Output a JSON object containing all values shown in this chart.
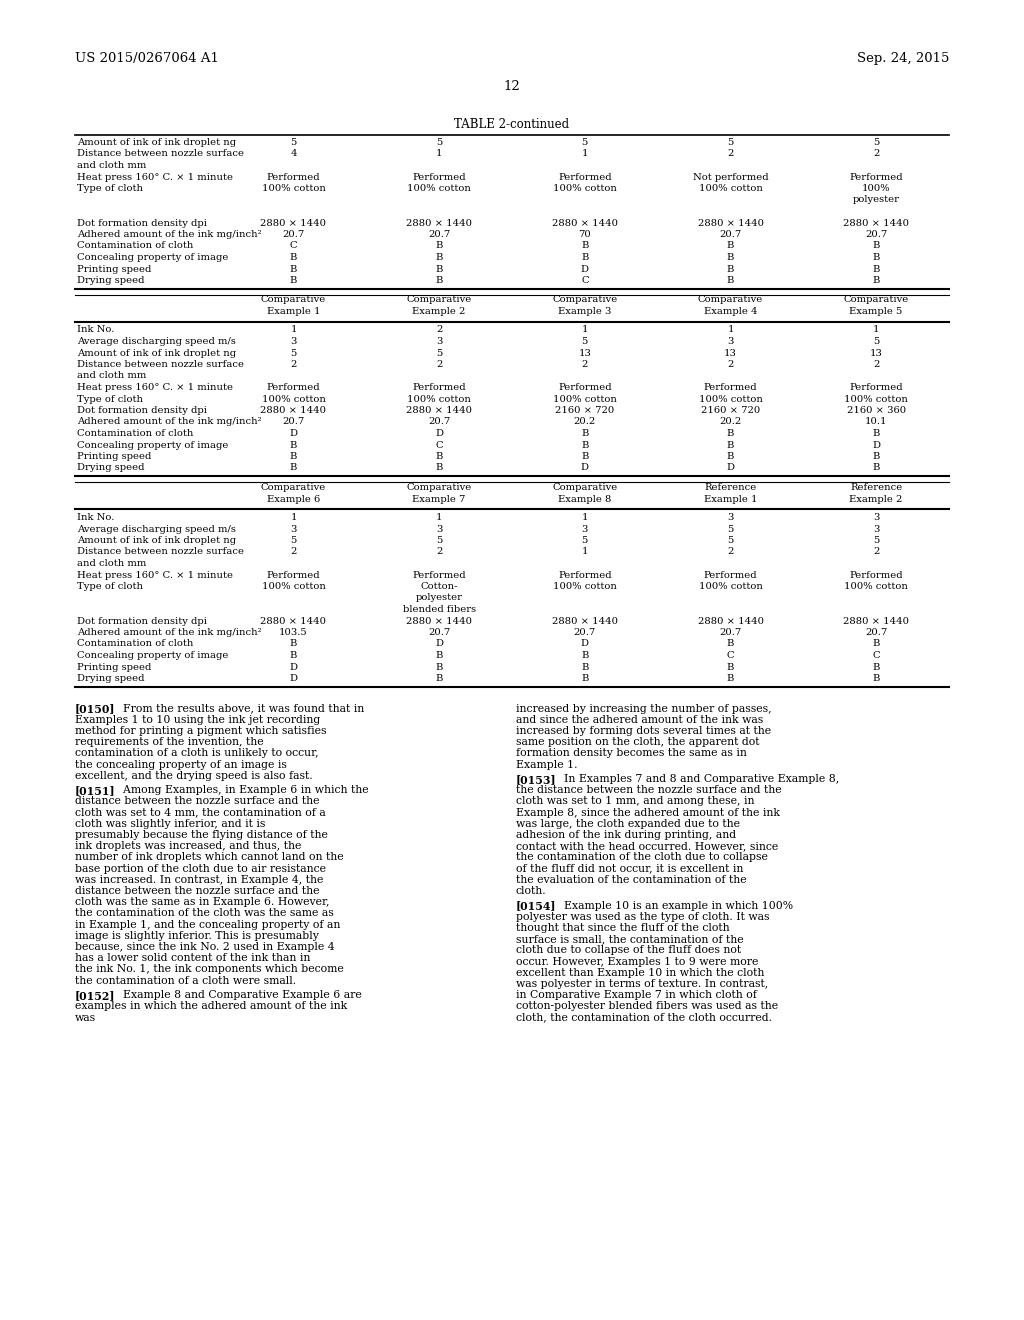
{
  "header_left": "US 2015/0267064 A1",
  "header_right": "Sep. 24, 2015",
  "page_number": "12",
  "table_title": "TABLE 2-continued",
  "background_color": "#ffffff",
  "font_size_header": 9.5,
  "font_size_table": 7.2,
  "font_size_body": 7.8,
  "table1_rows": [
    [
      "Amount of ink of ink droplet ng",
      "5",
      "5",
      "5",
      "5",
      "5"
    ],
    [
      "Distance between nozzle surface\nand cloth mm",
      "4",
      "1",
      "1",
      "2",
      "2"
    ],
    [
      "Heat press 160° C. × 1 minute",
      "Performed",
      "Performed",
      "Performed",
      "Not performed",
      "Performed"
    ],
    [
      "Type of cloth",
      "100% cotton",
      "100% cotton",
      "100% cotton",
      "100% cotton",
      "100%\npolyester"
    ],
    [
      "Dot formation density dpi",
      "2880 × 1440",
      "2880 × 1440",
      "2880 × 1440",
      "2880 × 1440",
      "2880 × 1440"
    ],
    [
      "Adhered amount of the ink mg/inch²",
      "20.7",
      "20.7",
      "70",
      "20.7",
      "20.7"
    ],
    [
      "Contamination of cloth",
      "C",
      "B",
      "B",
      "B",
      "B"
    ],
    [
      "Concealing property of image",
      "B",
      "B",
      "B",
      "B",
      "B"
    ],
    [
      "Printing speed",
      "B",
      "B",
      "D",
      "B",
      "B"
    ],
    [
      "Drying speed",
      "B",
      "B",
      "C",
      "B",
      "B"
    ]
  ],
  "table2_headers": [
    "",
    "Comparative\nExample 1",
    "Comparative\nExample 2",
    "Comparative\nExample 3",
    "Comparative\nExample 4",
    "Comparative\nExample 5"
  ],
  "table2_rows": [
    [
      "Ink No.",
      "1",
      "2",
      "1",
      "1",
      "1"
    ],
    [
      "Average discharging speed m/s",
      "3",
      "3",
      "5",
      "3",
      "5"
    ],
    [
      "Amount of ink of ink droplet ng",
      "5",
      "5",
      "13",
      "13",
      "13"
    ],
    [
      "Distance between nozzle surface\nand cloth mm",
      "2",
      "2",
      "2",
      "2",
      "2"
    ],
    [
      "Heat press 160° C. × 1 minute",
      "Performed",
      "Performed",
      "Performed",
      "Performed",
      "Performed"
    ],
    [
      "Type of cloth",
      "100% cotton",
      "100% cotton",
      "100% cotton",
      "100% cotton",
      "100% cotton"
    ],
    [
      "Dot formation density dpi",
      "2880 × 1440",
      "2880 × 1440",
      "2160 × 720",
      "2160 × 720",
      "2160 × 360"
    ],
    [
      "Adhered amount of the ink mg/inch²",
      "20.7",
      "20.7",
      "20.2",
      "20.2",
      "10.1"
    ],
    [
      "Contamination of cloth",
      "D",
      "D",
      "B",
      "B",
      "B"
    ],
    [
      "Concealing property of image",
      "B",
      "C",
      "B",
      "B",
      "D"
    ],
    [
      "Printing speed",
      "B",
      "B",
      "B",
      "B",
      "B"
    ],
    [
      "Drying speed",
      "B",
      "B",
      "D",
      "D",
      "B"
    ]
  ],
  "table3_headers": [
    "",
    "Comparative\nExample 6",
    "Comparative\nExample 7",
    "Comparative\nExample 8",
    "Reference\nExample 1",
    "Reference\nExample 2"
  ],
  "table3_rows": [
    [
      "Ink No.",
      "1",
      "1",
      "1",
      "3",
      "3"
    ],
    [
      "Average discharging speed m/s",
      "3",
      "3",
      "3",
      "5",
      "3"
    ],
    [
      "Amount of ink of ink droplet ng",
      "5",
      "5",
      "5",
      "5",
      "5"
    ],
    [
      "Distance between nozzle surface\nand cloth mm",
      "2",
      "2",
      "1",
      "2",
      "2"
    ],
    [
      "Heat press 160° C. × 1 minute",
      "Performed",
      "Performed",
      "Performed",
      "Performed",
      "Performed"
    ],
    [
      "Type of cloth",
      "100% cotton",
      "Cotton-\npolyester\nblended fibers",
      "100% cotton",
      "100% cotton",
      "100% cotton"
    ],
    [
      "Dot formation density dpi",
      "2880 × 1440",
      "2880 × 1440",
      "2880 × 1440",
      "2880 × 1440",
      "2880 × 1440"
    ],
    [
      "Adhered amount of the ink mg/inch²",
      "103.5",
      "20.7",
      "20.7",
      "20.7",
      "20.7"
    ],
    [
      "Contamination of cloth",
      "B",
      "D",
      "D",
      "B",
      "B"
    ],
    [
      "Concealing property of image",
      "B",
      "B",
      "B",
      "C",
      "C"
    ],
    [
      "Printing speed",
      "D",
      "B",
      "B",
      "B",
      "B"
    ],
    [
      "Drying speed",
      "D",
      "B",
      "B",
      "B",
      "B"
    ]
  ],
  "para_0150": "From the results above, it was found that in Examples 1 to 10 using the ink jet recording method for printing a pigment which satisfies requirements of the invention, the contamination of a cloth is unlikely to occur, the concealing property of an image is excellent, and the drying speed is also fast.",
  "para_0151": "Among Examples, in Example 6 in which the distance between the nozzle surface and the cloth was set to 4 mm, the contamination of a cloth was slightly inferior, and it is presumably because the flying distance of the ink droplets was increased, and thus, the number of ink droplets which cannot land on the base portion of the cloth due to air resistance was increased. In contrast, in Example 4, the distance between the nozzle surface and the cloth was the same as in Example 6. However, the contamination of the cloth was the same as in Example 1, and the concealing property of an image is slightly inferior. This is presumably because, since the ink No. 2 used in Example 4 has a lower solid content of the ink than in the ink No. 1, the ink components which become the contamination of a cloth were small.",
  "para_0152": "Example 8 and Comparative Example 6 are examples in which the adhered amount of the ink was",
  "para_0152_cont": "increased by increasing the number of passes, and since the adhered amount of the ink was increased by forming dots several times at the same position on the cloth, the apparent dot formation density becomes the same as in Example 1.",
  "para_0153": "In Examples 7 and 8 and Comparative Example 8, the distance between the nozzle surface and the cloth was set to 1 mm, and among these, in Example 8, since the adhered amount of the ink was large, the cloth expanded due to the adhesion of the ink during printing, and contact with the head occurred. However, since the contamination of the cloth due to collapse of the fluff did not occur, it is excellent in the evaluation of the contamination of the cloth.",
  "para_0154": "Example 10 is an example in which 100% polyester was used as the type of cloth. It was thought that since the fluff of the cloth surface is small, the contamination of the cloth due to collapse of the fluff does not occur. However, Examples 1 to 9 were more excellent than Example 10 in which the cloth was polyester in terms of texture. In contrast, in Comparative Example 7 in which cloth of cotton-polyester blended fibers was used as the cloth, the contamination of the cloth occurred."
}
